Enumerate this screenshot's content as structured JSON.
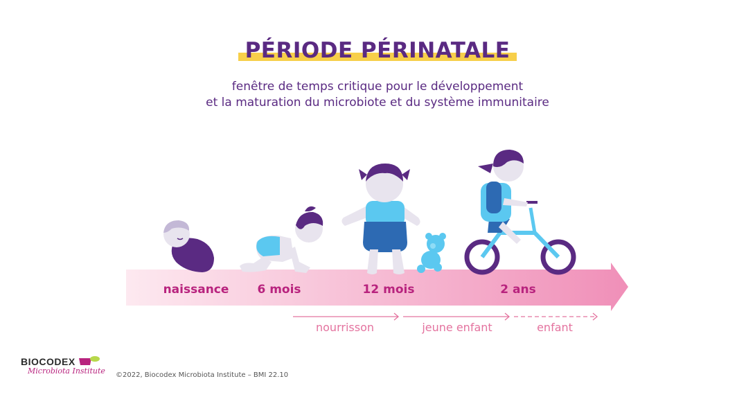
{
  "title": "PÉRIODE PÉRINATALE",
  "subtitle": {
    "line1": "fenêtre de temps critique pour le développement",
    "line2": "et la maturation du microbiote et du système immunitaire"
  },
  "stages": [
    "naissance",
    "6 mois",
    "12 mois",
    "2 ans"
  ],
  "periods": [
    "nourrisson",
    "jeune enfant",
    "enfant"
  ],
  "logo": {
    "name": "BIOCODEX",
    "tagline": "Microbiota Institute"
  },
  "footer": "©2022, Biocodex Microbiota Institute  –  BMI 22.10",
  "colors": {
    "title": "#5a2a82",
    "highlight": "#f7cf4a",
    "stage_label": "#b8237e",
    "period_label": "#e4739f",
    "arrow_start": "#fde9f0",
    "arrow_end": "#f08fb8",
    "purple": "#5a2a82",
    "light_blue": "#5bc8f0",
    "dark_blue": "#2d6ab3",
    "skin": "#e8e4ee"
  }
}
